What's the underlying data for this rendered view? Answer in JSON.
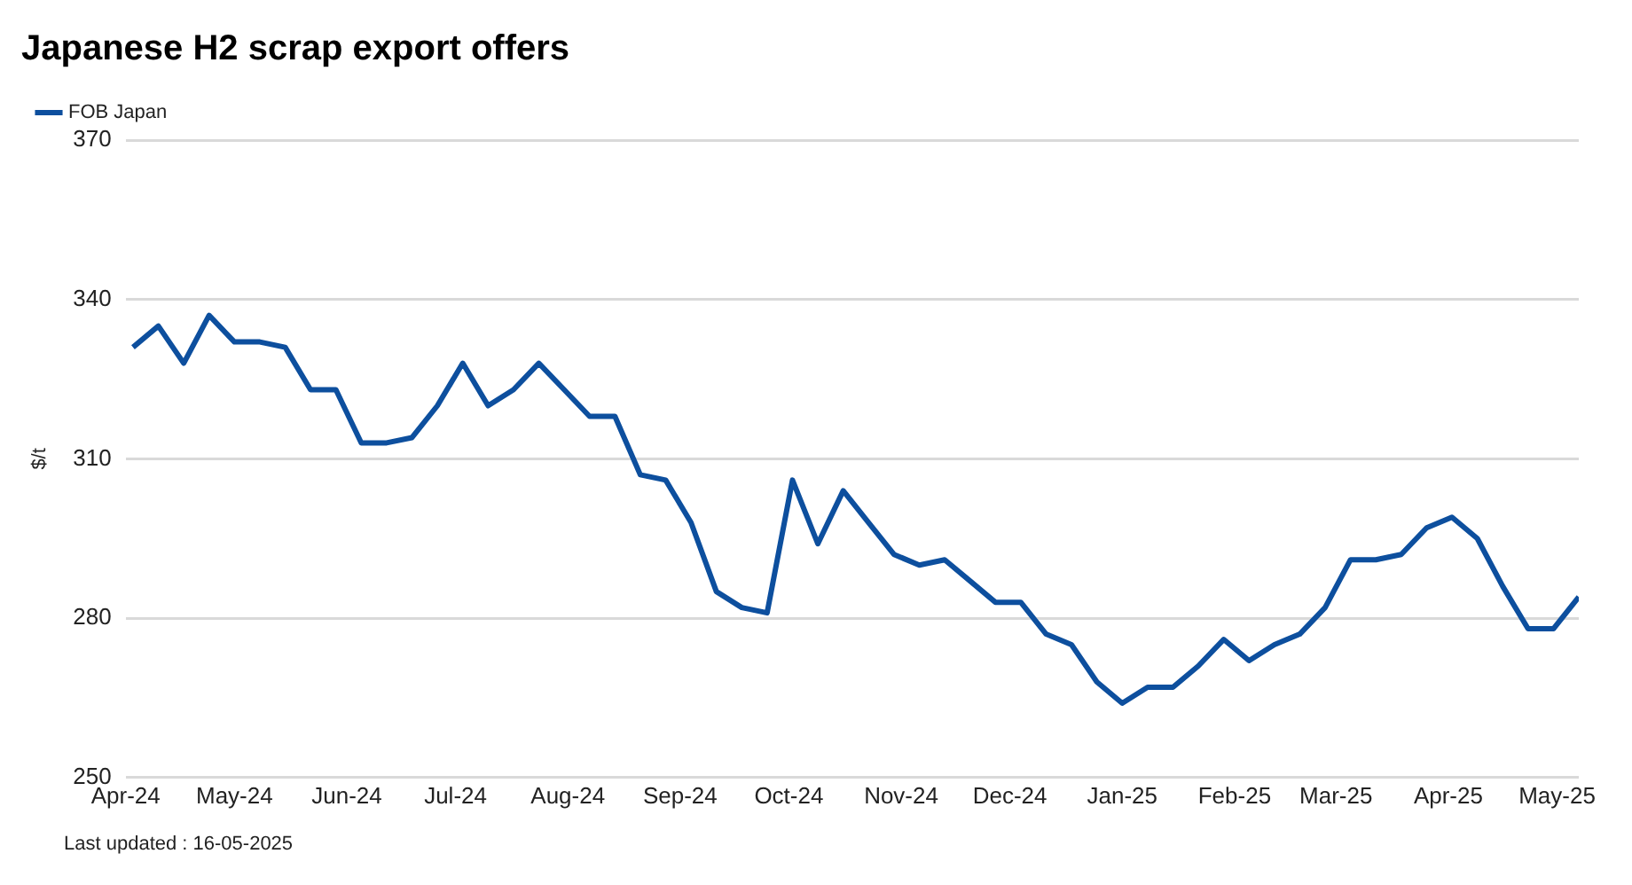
{
  "chart_data": {
    "type": "line",
    "title": "Japanese H2 scrap export offers",
    "ylabel": "$/t",
    "annotations": [
      "Last updated : 16-05-2025"
    ],
    "x": [
      "2024-04-03",
      "2024-04-10",
      "2024-04-17",
      "2024-04-24",
      "2024-05-01",
      "2024-05-08",
      "2024-05-15",
      "2024-05-22",
      "2024-05-29",
      "2024-06-05",
      "2024-06-12",
      "2024-06-19",
      "2024-06-26",
      "2024-07-03",
      "2024-07-10",
      "2024-07-17",
      "2024-07-24",
      "2024-07-31",
      "2024-08-07",
      "2024-08-14",
      "2024-08-21",
      "2024-08-28",
      "2024-09-04",
      "2024-09-11",
      "2024-09-18",
      "2024-09-25",
      "2024-10-02",
      "2024-10-09",
      "2024-10-16",
      "2024-10-23",
      "2024-10-30",
      "2024-11-06",
      "2024-11-13",
      "2024-11-20",
      "2024-11-27",
      "2024-12-04",
      "2024-12-11",
      "2024-12-18",
      "2024-12-25",
      "2025-01-01",
      "2025-01-08",
      "2025-01-15",
      "2025-01-22",
      "2025-01-29",
      "2025-02-05",
      "2025-02-12",
      "2025-02-19",
      "2025-02-26",
      "2025-03-05",
      "2025-03-12",
      "2025-03-19",
      "2025-03-26",
      "2025-04-02",
      "2025-04-09",
      "2025-04-16",
      "2025-04-23",
      "2025-04-30",
      "2025-05-07"
    ],
    "series": [
      {
        "name": "FOB Japan",
        "color": "#0d4f9e",
        "values": [
          331,
          335,
          328,
          337,
          332,
          332,
          331,
          323,
          323,
          313,
          313,
          314,
          320,
          328,
          320,
          323,
          328,
          323,
          318,
          318,
          307,
          306,
          298,
          285,
          282,
          281,
          306,
          294,
          304,
          298,
          292,
          290,
          291,
          287,
          283,
          283,
          277,
          275,
          268,
          264,
          267,
          267,
          271,
          276,
          272,
          275,
          277,
          282,
          291,
          291,
          292,
          297,
          299,
          295,
          286,
          278,
          278,
          284
        ]
      }
    ],
    "xlim": [
      "2024-04-01",
      "2025-05-07"
    ],
    "xticks": [
      {
        "value": "2024-04-01",
        "label": "Apr-24"
      },
      {
        "value": "2024-05-01",
        "label": "May-24"
      },
      {
        "value": "2024-06-01",
        "label": "Jun-24"
      },
      {
        "value": "2024-07-01",
        "label": "Jul-24"
      },
      {
        "value": "2024-08-01",
        "label": "Aug-24"
      },
      {
        "value": "2024-09-01",
        "label": "Sep-24"
      },
      {
        "value": "2024-10-01",
        "label": "Oct-24"
      },
      {
        "value": "2024-11-01",
        "label": "Nov-24"
      },
      {
        "value": "2024-12-01",
        "label": "Dec-24"
      },
      {
        "value": "2025-01-01",
        "label": "Jan-25"
      },
      {
        "value": "2025-02-01",
        "label": "Feb-25"
      },
      {
        "value": "2025-03-01",
        "label": "Mar-25"
      },
      {
        "value": "2025-04-01",
        "label": "Apr-25"
      },
      {
        "value": "2025-05-01",
        "label": "May-25"
      }
    ],
    "ylim": [
      250,
      370
    ],
    "yticks": [
      250,
      280,
      310,
      340,
      370
    ],
    "grid": "y",
    "legend": "top left",
    "marker": "none",
    "line_style": "solid"
  }
}
